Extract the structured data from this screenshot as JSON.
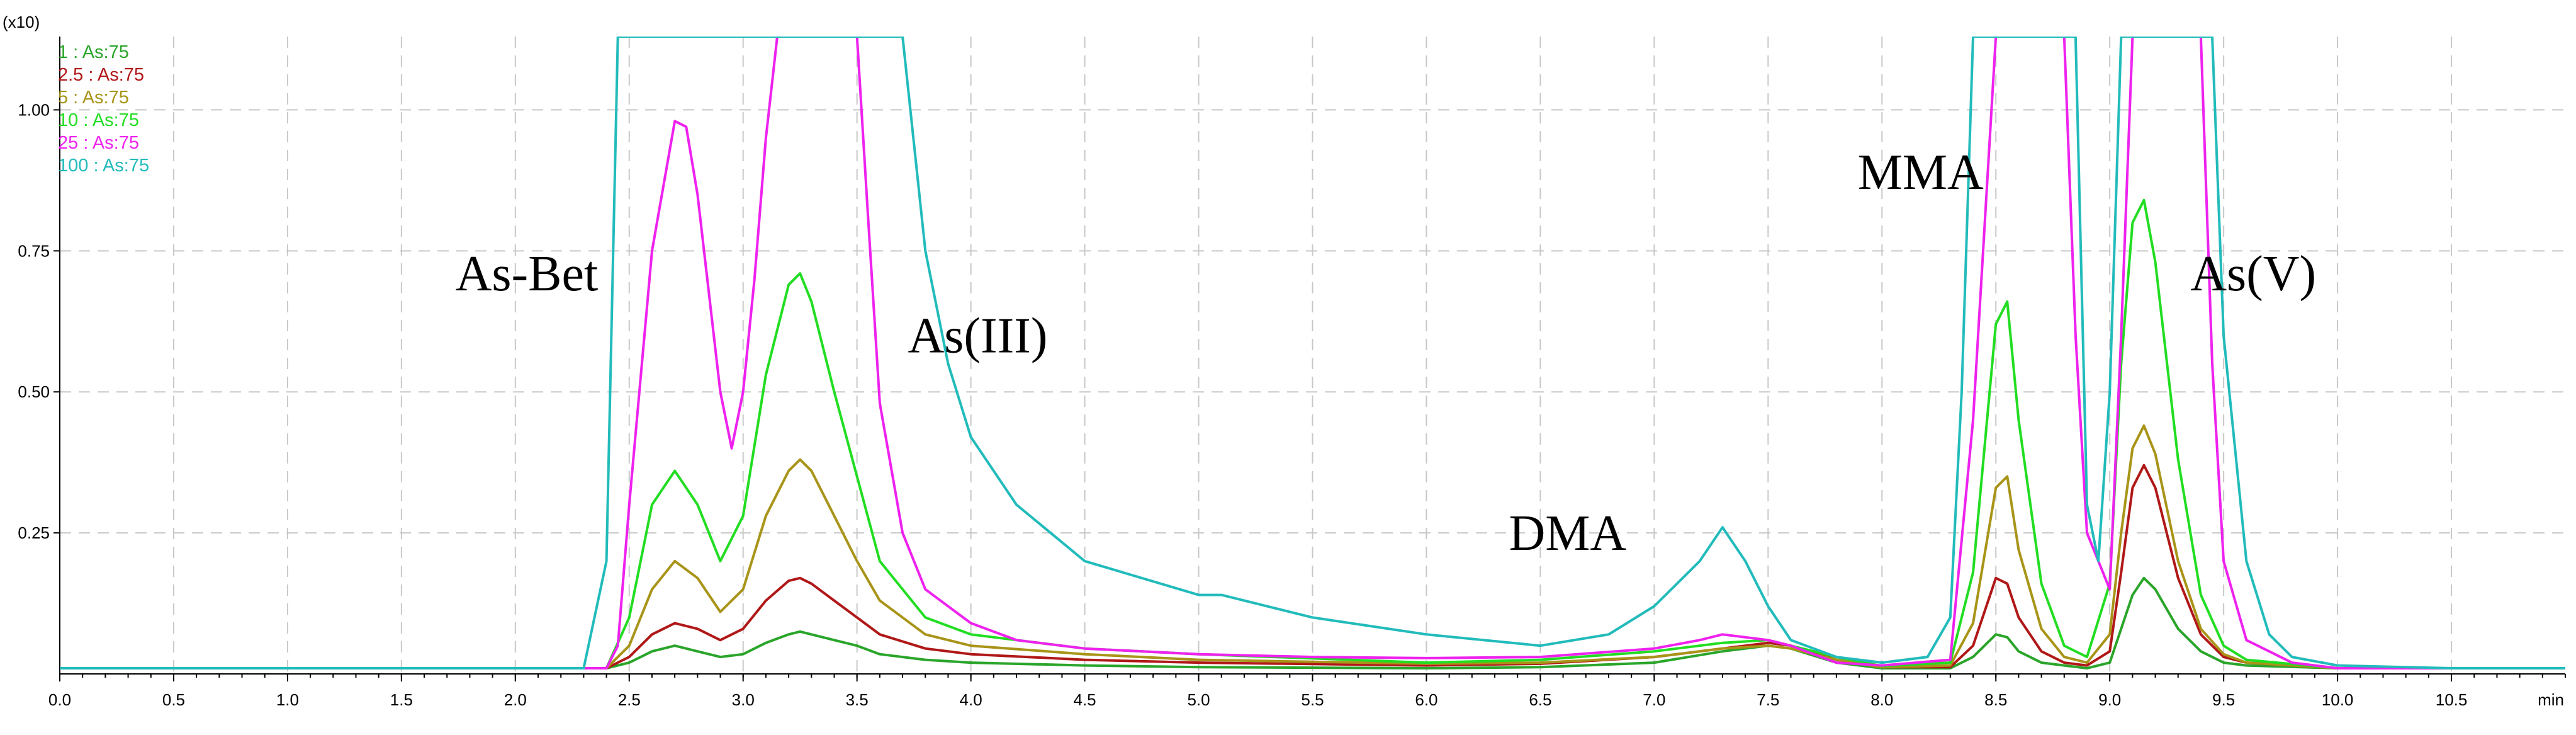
{
  "chart_data": {
    "type": "line",
    "title": "",
    "xlabel": "min",
    "ylabel": "",
    "y_multiplier": "(x10)",
    "xlim": [
      0.0,
      11.0
    ],
    "ylim": [
      0.0,
      1.13
    ],
    "x_ticks": [
      "0.0",
      "0.5",
      "1.0",
      "1.5",
      "2.0",
      "2.5",
      "3.0",
      "3.5",
      "4.0",
      "4.5",
      "5.0",
      "5.5",
      "6.0",
      "6.5",
      "7.0",
      "7.5",
      "8.0",
      "8.5",
      "9.0",
      "9.5",
      "10.0",
      "10.5"
    ],
    "y_ticks": [
      "0.25",
      "0.50",
      "0.75",
      "1.00"
    ],
    "grid": true,
    "legend_position": "top-left",
    "annotations": [
      {
        "text": "As-Bet",
        "x": 2.05,
        "y": 0.68
      },
      {
        "text": "As(III)",
        "x": 4.03,
        "y": 0.57
      },
      {
        "text": "DMA",
        "x": 6.62,
        "y": 0.22
      },
      {
        "text": "MMA",
        "x": 8.17,
        "y": 0.86
      },
      {
        "text": "As(V)",
        "x": 9.63,
        "y": 0.68
      }
    ],
    "series": [
      {
        "name": "1 : As:75",
        "color": "#2aa52a",
        "x": [
          0,
          2.4,
          2.5,
          2.6,
          2.7,
          2.8,
          2.9,
          3.0,
          3.1,
          3.2,
          3.25,
          3.3,
          3.4,
          3.5,
          3.6,
          3.8,
          4.0,
          4.5,
          5.0,
          6.0,
          6.5,
          7.0,
          7.3,
          7.5,
          7.6,
          7.8,
          8.0,
          8.3,
          8.4,
          8.5,
          8.55,
          8.6,
          8.7,
          8.8,
          8.9,
          9.0,
          9.05,
          9.1,
          9.15,
          9.2,
          9.3,
          9.4,
          9.5,
          9.6,
          10.0,
          11.0
        ],
        "values": [
          0.01,
          0.01,
          0.02,
          0.04,
          0.05,
          0.04,
          0.03,
          0.035,
          0.055,
          0.07,
          0.075,
          0.07,
          0.06,
          0.05,
          0.035,
          0.025,
          0.02,
          0.015,
          0.012,
          0.01,
          0.012,
          0.02,
          0.04,
          0.05,
          0.045,
          0.02,
          0.01,
          0.01,
          0.03,
          0.07,
          0.065,
          0.04,
          0.02,
          0.015,
          0.01,
          0.02,
          0.08,
          0.14,
          0.17,
          0.15,
          0.08,
          0.04,
          0.02,
          0.015,
          0.01,
          0.01
        ]
      },
      {
        "name": "2.5 : As:75",
        "color": "#b01818",
        "x": [
          0,
          2.4,
          2.5,
          2.6,
          2.7,
          2.8,
          2.9,
          3.0,
          3.1,
          3.2,
          3.25,
          3.3,
          3.4,
          3.5,
          3.6,
          3.8,
          4.0,
          4.5,
          5.0,
          6.0,
          6.5,
          7.0,
          7.3,
          7.5,
          7.6,
          7.8,
          8.0,
          8.3,
          8.4,
          8.5,
          8.55,
          8.6,
          8.7,
          8.8,
          8.9,
          9.0,
          9.05,
          9.1,
          9.15,
          9.2,
          9.3,
          9.4,
          9.5,
          9.6,
          10.0,
          11.0
        ],
        "values": [
          0.01,
          0.01,
          0.03,
          0.07,
          0.09,
          0.08,
          0.06,
          0.08,
          0.13,
          0.165,
          0.17,
          0.16,
          0.13,
          0.1,
          0.07,
          0.045,
          0.035,
          0.025,
          0.02,
          0.015,
          0.018,
          0.03,
          0.045,
          0.055,
          0.05,
          0.025,
          0.012,
          0.012,
          0.05,
          0.17,
          0.16,
          0.1,
          0.04,
          0.02,
          0.015,
          0.04,
          0.18,
          0.33,
          0.37,
          0.33,
          0.17,
          0.07,
          0.03,
          0.02,
          0.01,
          0.01
        ]
      },
      {
        "name": "5 : As:75",
        "color": "#a89418",
        "x": [
          0,
          2.4,
          2.5,
          2.6,
          2.7,
          2.8,
          2.9,
          3.0,
          3.1,
          3.2,
          3.25,
          3.3,
          3.4,
          3.5,
          3.6,
          3.8,
          4.0,
          4.5,
          5.0,
          6.0,
          6.5,
          7.0,
          7.3,
          7.5,
          7.6,
          7.8,
          8.0,
          8.3,
          8.4,
          8.5,
          8.55,
          8.6,
          8.7,
          8.8,
          8.9,
          9.0,
          9.05,
          9.1,
          9.15,
          9.2,
          9.3,
          9.4,
          9.5,
          9.6,
          10.0,
          11.0
        ],
        "values": [
          0.01,
          0.01,
          0.05,
          0.15,
          0.2,
          0.17,
          0.11,
          0.15,
          0.28,
          0.36,
          0.38,
          0.36,
          0.28,
          0.2,
          0.13,
          0.07,
          0.05,
          0.035,
          0.025,
          0.018,
          0.02,
          0.03,
          0.045,
          0.05,
          0.045,
          0.025,
          0.012,
          0.015,
          0.09,
          0.33,
          0.35,
          0.22,
          0.08,
          0.03,
          0.02,
          0.07,
          0.25,
          0.4,
          0.44,
          0.39,
          0.2,
          0.08,
          0.035,
          0.02,
          0.01,
          0.01
        ]
      },
      {
        "name": "10 : As:75",
        "color": "#22dd22",
        "x": [
          0,
          2.4,
          2.5,
          2.6,
          2.7,
          2.8,
          2.9,
          3.0,
          3.1,
          3.2,
          3.25,
          3.3,
          3.4,
          3.5,
          3.6,
          3.8,
          4.0,
          4.5,
          5.0,
          6.0,
          6.5,
          7.0,
          7.3,
          7.5,
          7.6,
          7.8,
          8.0,
          8.3,
          8.4,
          8.5,
          8.55,
          8.6,
          8.7,
          8.8,
          8.9,
          9.0,
          9.05,
          9.1,
          9.15,
          9.2,
          9.3,
          9.4,
          9.5,
          9.6,
          10.0,
          11.0
        ],
        "values": [
          0.01,
          0.01,
          0.1,
          0.3,
          0.36,
          0.3,
          0.2,
          0.28,
          0.53,
          0.69,
          0.71,
          0.66,
          0.5,
          0.35,
          0.2,
          0.1,
          0.07,
          0.045,
          0.035,
          0.02,
          0.025,
          0.04,
          0.055,
          0.06,
          0.05,
          0.03,
          0.014,
          0.02,
          0.18,
          0.62,
          0.66,
          0.45,
          0.16,
          0.05,
          0.03,
          0.16,
          0.55,
          0.8,
          0.84,
          0.73,
          0.38,
          0.14,
          0.05,
          0.025,
          0.01,
          0.01
        ]
      },
      {
        "name": "25 : As:75",
        "color": "#ee22ee",
        "x": [
          0,
          2.4,
          2.45,
          2.5,
          2.6,
          2.7,
          2.75,
          2.8,
          2.9,
          2.95,
          3.0,
          3.05,
          3.1,
          3.15,
          3.5,
          3.55,
          3.6,
          3.7,
          3.8,
          4.0,
          4.2,
          4.5,
          5.0,
          5.5,
          6.0,
          6.5,
          7.0,
          7.2,
          7.3,
          7.5,
          7.6,
          7.8,
          8.0,
          8.3,
          8.4,
          8.5,
          8.8,
          8.85,
          8.9,
          9.0,
          9.05,
          9.1,
          9.4,
          9.45,
          9.5,
          9.6,
          9.8,
          10.0,
          11.0
        ],
        "values": [
          0.01,
          0.01,
          0.05,
          0.3,
          0.75,
          0.98,
          0.97,
          0.85,
          0.5,
          0.4,
          0.5,
          0.7,
          0.95,
          1.13,
          1.13,
          0.8,
          0.48,
          0.25,
          0.15,
          0.09,
          0.06,
          0.045,
          0.035,
          0.03,
          0.028,
          0.03,
          0.045,
          0.06,
          0.07,
          0.06,
          0.05,
          0.02,
          0.015,
          0.025,
          0.45,
          1.13,
          1.13,
          0.6,
          0.25,
          0.15,
          0.6,
          1.13,
          1.13,
          0.55,
          0.2,
          0.06,
          0.02,
          0.01,
          0.01
        ]
      },
      {
        "name": "100 : As:75",
        "color": "#22bbbb",
        "x": [
          0,
          2.3,
          2.4,
          2.45,
          3.7,
          3.8,
          3.9,
          4.0,
          4.2,
          4.5,
          5.0,
          5.1,
          5.5,
          6.0,
          6.5,
          6.8,
          7.0,
          7.2,
          7.3,
          7.4,
          7.5,
          7.6,
          7.8,
          8.0,
          8.2,
          8.3,
          8.35,
          8.4,
          8.85,
          8.9,
          8.95,
          9.0,
          9.05,
          9.45,
          9.5,
          9.6,
          9.7,
          9.8,
          10.0,
          10.5,
          11.0
        ],
        "values": [
          0.01,
          0.01,
          0.2,
          1.13,
          1.13,
          0.75,
          0.55,
          0.42,
          0.3,
          0.2,
          0.14,
          0.14,
          0.1,
          0.07,
          0.05,
          0.07,
          0.12,
          0.2,
          0.26,
          0.2,
          0.12,
          0.06,
          0.03,
          0.02,
          0.03,
          0.1,
          0.5,
          1.13,
          1.13,
          0.3,
          0.2,
          0.5,
          1.13,
          1.13,
          0.6,
          0.2,
          0.07,
          0.03,
          0.015,
          0.01,
          0.01
        ]
      }
    ]
  }
}
